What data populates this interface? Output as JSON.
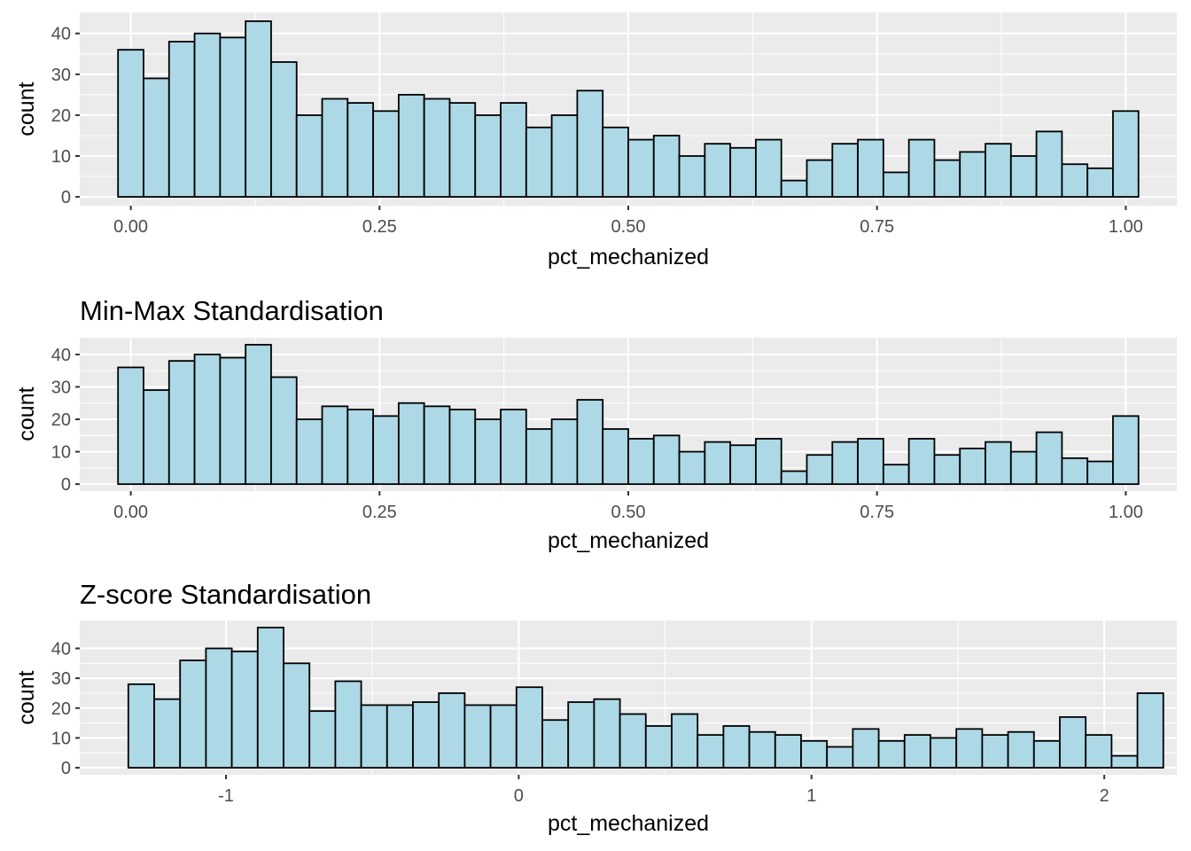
{
  "chart_data": [
    {
      "type": "bar",
      "title": "",
      "xlabel": "pct_mechanized",
      "ylabel": "count",
      "bins": 40,
      "binwidth": 0.02564,
      "first_bin_center": 0.0,
      "xlim": [
        -0.0513,
        1.0513
      ],
      "ylim": [
        -2.15,
        45.15
      ],
      "xticks": [
        0.0,
        0.25,
        0.5,
        0.75,
        1.0
      ],
      "xtick_labels": [
        "0.00",
        "0.25",
        "0.50",
        "0.75",
        "1.00"
      ],
      "yticks": [
        0,
        10,
        20,
        30,
        40
      ],
      "ytick_labels": [
        "0",
        "10",
        "20",
        "30",
        "40"
      ],
      "grid": true,
      "fill_color": "#add8e6",
      "outline_color": "#000000",
      "panel_color": "#ebebeb",
      "values": [
        36,
        29,
        38,
        40,
        39,
        43,
        33,
        20,
        24,
        23,
        21,
        25,
        24,
        23,
        20,
        23,
        17,
        20,
        26,
        17,
        14,
        15,
        10,
        13,
        12,
        14,
        4,
        9,
        13,
        14,
        6,
        14,
        9,
        11,
        13,
        10,
        16,
        8,
        7,
        21
      ]
    },
    {
      "type": "bar",
      "title": "Min-Max Standardisation",
      "xlabel": "pct_mechanized",
      "ylabel": "count",
      "bins": 40,
      "binwidth": 0.02564,
      "first_bin_center": 0.0,
      "xlim": [
        -0.0513,
        1.0513
      ],
      "ylim": [
        -2.15,
        45.15
      ],
      "xticks": [
        0.0,
        0.25,
        0.5,
        0.75,
        1.0
      ],
      "xtick_labels": [
        "0.00",
        "0.25",
        "0.50",
        "0.75",
        "1.00"
      ],
      "yticks": [
        0,
        10,
        20,
        30,
        40
      ],
      "ytick_labels": [
        "0",
        "10",
        "20",
        "30",
        "40"
      ],
      "grid": true,
      "fill_color": "#add8e6",
      "outline_color": "#000000",
      "panel_color": "#ebebeb",
      "values": [
        36,
        29,
        38,
        40,
        39,
        43,
        33,
        20,
        24,
        23,
        21,
        25,
        24,
        23,
        20,
        23,
        17,
        20,
        26,
        17,
        14,
        15,
        10,
        13,
        12,
        14,
        4,
        9,
        13,
        14,
        6,
        14,
        9,
        11,
        13,
        10,
        16,
        8,
        7,
        21
      ]
    },
    {
      "type": "bar",
      "title": "Z-score Standardisation",
      "xlabel": "pct_mechanized",
      "ylabel": "count",
      "bins": 40,
      "binwidth": 0.08838,
      "first_bin_center": -1.2893,
      "xlim": [
        -1.4994,
        2.2478
      ],
      "ylim": [
        -2.35,
        49.35
      ],
      "xticks": [
        -1,
        0,
        1,
        2
      ],
      "xtick_labels": [
        "-1",
        "0",
        "1",
        "2"
      ],
      "yticks": [
        0,
        10,
        20,
        30,
        40
      ],
      "ytick_labels": [
        "0",
        "10",
        "20",
        "30",
        "40"
      ],
      "grid": true,
      "fill_color": "#add8e6",
      "outline_color": "#000000",
      "panel_color": "#ebebeb",
      "values": [
        28,
        23,
        36,
        40,
        39,
        47,
        35,
        19,
        29,
        21,
        21,
        22,
        25,
        21,
        21,
        27,
        16,
        22,
        23,
        18,
        14,
        18,
        11,
        14,
        12,
        11,
        9,
        7,
        13,
        9,
        11,
        10,
        13,
        11,
        12,
        9,
        17,
        11,
        4,
        25
      ]
    }
  ]
}
